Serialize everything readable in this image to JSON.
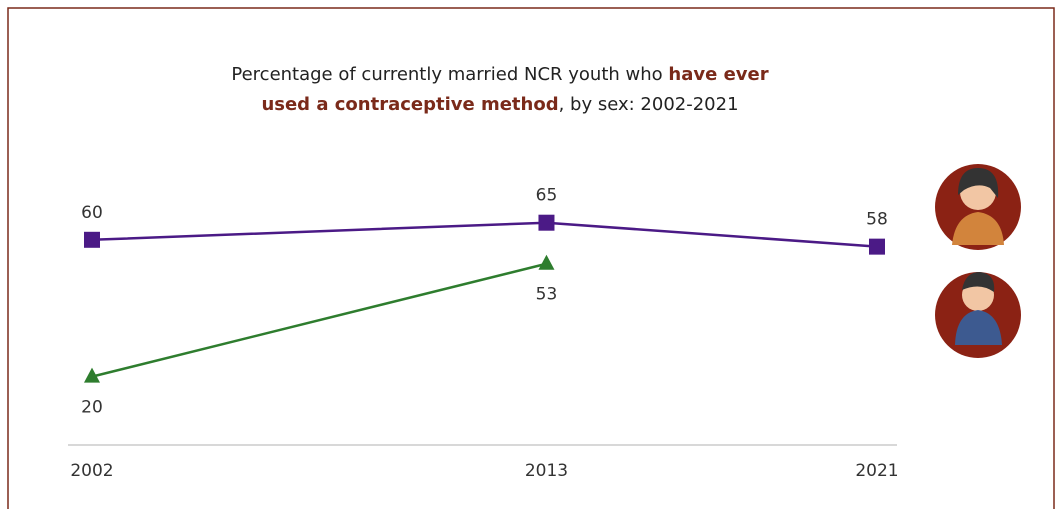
{
  "chart_data": {
    "type": "line",
    "title": [
      "Percentage of currently married NCR youth who ",
      "have ever used a contraceptive method",
      ", by sex: 2002-2021"
    ],
    "x": [
      2002,
      2013,
      2021
    ],
    "xlim": [
      2002,
      2021
    ],
    "xticks": [
      2002,
      2013,
      2021
    ],
    "ylim": [
      0,
      100
    ],
    "series": [
      {
        "color": "#4b1a86",
        "marker": "square",
        "values": [
          60,
          65,
          58
        ]
      },
      {
        "color": "#2e7d2e",
        "marker": "triangle",
        "values": [
          20,
          53,
          null
        ]
      }
    ]
  }
}
